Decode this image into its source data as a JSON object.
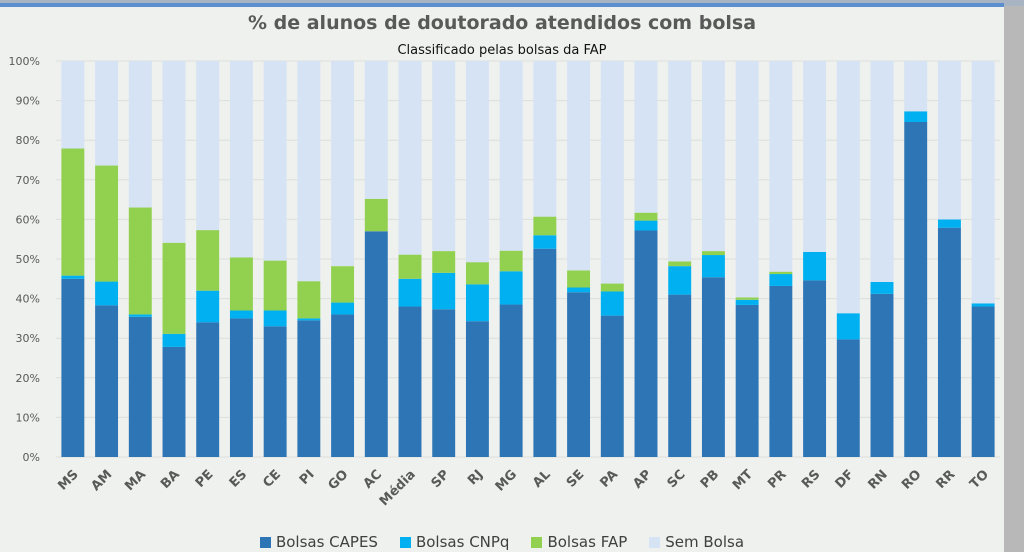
{
  "chart_data": {
    "type": "bar",
    "stacked": true,
    "title": "% de alunos de doutorado atendidos com bolsa",
    "subtitle": "Classificado pelas bolsas da FAP",
    "xlabel": "",
    "ylabel": "",
    "ylim": [
      0,
      100
    ],
    "yticks": [
      "0%",
      "10%",
      "20%",
      "30%",
      "40%",
      "50%",
      "60%",
      "70%",
      "80%",
      "90%",
      "100%"
    ],
    "grid": true,
    "legend_position": "bottom",
    "categories": [
      "MS",
      "AM",
      "MA",
      "BA",
      "PE",
      "ES",
      "CE",
      "PI",
      "GO",
      "AC",
      "Média",
      "SP",
      "RJ",
      "MG",
      "AL",
      "SE",
      "PA",
      "AP",
      "SC",
      "PB",
      "MT",
      "PR",
      "RS",
      "DF",
      "RN",
      "RO",
      "RR",
      "TO"
    ],
    "series": [
      {
        "name": "Bolsas CAPES",
        "color": "#2e75b6",
        "values": [
          45.0,
          38.3,
          35.4,
          27.8,
          34.0,
          35.0,
          33.0,
          34.5,
          36.0,
          57.0,
          38.0,
          37.3,
          34.3,
          38.5,
          52.6,
          41.6,
          35.7,
          57.2,
          41.0,
          45.4,
          38.4,
          43.2,
          44.6,
          29.7,
          41.2,
          84.6,
          57.9,
          38.0
        ]
      },
      {
        "name": "Bolsas CNPq",
        "color": "#00b0f0",
        "values": [
          0.8,
          6.0,
          0.6,
          3.3,
          8.0,
          2.0,
          4.0,
          0.5,
          3.0,
          0.0,
          7.0,
          9.2,
          9.3,
          8.4,
          3.4,
          1.2,
          6.1,
          2.5,
          7.2,
          5.6,
          1.3,
          3.0,
          7.2,
          6.6,
          3.0,
          2.7,
          2.1,
          0.8
        ]
      },
      {
        "name": "Bolsas FAP",
        "color": "#92d050",
        "values": [
          32.1,
          29.3,
          27.0,
          23.0,
          15.3,
          13.4,
          12.6,
          9.4,
          9.2,
          8.2,
          6.1,
          5.5,
          5.6,
          5.2,
          4.7,
          4.3,
          2.0,
          2.0,
          1.2,
          1.0,
          0.6,
          0.6,
          0.0,
          0.0,
          0.0,
          0.0,
          0.0,
          0.0
        ]
      },
      {
        "name": "Sem Bolsa",
        "color": "#d6e3f5",
        "values": [
          22.1,
          26.4,
          37.0,
          45.9,
          42.7,
          49.6,
          50.4,
          55.6,
          51.8,
          34.8,
          48.9,
          48.0,
          50.8,
          47.9,
          39.3,
          52.9,
          56.2,
          38.3,
          50.6,
          48.0,
          59.7,
          53.2,
          48.2,
          63.7,
          55.8,
          12.7,
          40.0,
          61.2
        ]
      }
    ]
  },
  "legend": [
    {
      "label": "Bolsas CAPES",
      "color": "#2e75b6"
    },
    {
      "label": "Bolsas CNPq",
      "color": "#00b0f0"
    },
    {
      "label": "Bolsas FAP",
      "color": "#92d050"
    },
    {
      "label": "Sem Bolsa",
      "color": "#d6e3f5"
    }
  ]
}
